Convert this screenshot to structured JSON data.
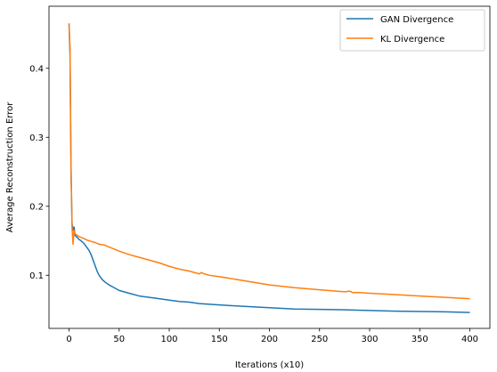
{
  "chart_data": {
    "type": "line",
    "xlabel": "Iterations (x10)",
    "ylabel": "Average Reconstruction Error",
    "xlim": [
      -20,
      420
    ],
    "ylim": [
      0.023,
      0.49
    ],
    "x_ticks": [
      0,
      50,
      100,
      150,
      200,
      250,
      300,
      350,
      400
    ],
    "y_ticks": [
      0.1,
      0.2,
      0.3,
      0.4
    ],
    "x_tick_labels": [
      "0",
      "50",
      "100",
      "150",
      "200",
      "250",
      "300",
      "350",
      "400"
    ],
    "y_tick_labels": [
      "0.1",
      "0.2",
      "0.3",
      "0.4"
    ],
    "grid": false,
    "legend_position": "top-right",
    "series": [
      {
        "name": "GAN Divergence",
        "color": "#1f77b4",
        "x": [
          0,
          1,
          2,
          3,
          4,
          5,
          6,
          8,
          10,
          12,
          15,
          18,
          20,
          22,
          25,
          28,
          30,
          33,
          36,
          40,
          45,
          50,
          60,
          70,
          80,
          90,
          100,
          110,
          120,
          130,
          140,
          150,
          175,
          200,
          225,
          250,
          275,
          300,
          325,
          350,
          375,
          400
        ],
        "y": [
          0.465,
          0.42,
          0.25,
          0.175,
          0.165,
          0.17,
          0.158,
          0.155,
          0.152,
          0.15,
          0.146,
          0.14,
          0.136,
          0.13,
          0.118,
          0.106,
          0.1,
          0.094,
          0.09,
          0.086,
          0.082,
          0.078,
          0.074,
          0.07,
          0.068,
          0.066,
          0.064,
          0.062,
          0.061,
          0.059,
          0.058,
          0.057,
          0.055,
          0.053,
          0.051,
          0.0505,
          0.05,
          0.049,
          0.048,
          0.0475,
          0.047,
          0.046
        ]
      },
      {
        "name": "KL Divergence",
        "color": "#ff7f0e",
        "x": [
          0,
          1,
          2,
          3,
          4,
          5,
          6,
          8,
          10,
          12,
          15,
          18,
          20,
          25,
          30,
          35,
          40,
          45,
          50,
          60,
          70,
          80,
          90,
          100,
          110,
          120,
          130,
          132,
          135,
          140,
          150,
          175,
          200,
          225,
          250,
          275,
          280,
          283,
          290,
          300,
          325,
          350,
          375,
          400
        ],
        "y": [
          0.465,
          0.43,
          0.26,
          0.17,
          0.145,
          0.165,
          0.16,
          0.158,
          0.156,
          0.155,
          0.153,
          0.151,
          0.15,
          0.148,
          0.145,
          0.144,
          0.141,
          0.138,
          0.135,
          0.13,
          0.126,
          0.122,
          0.118,
          0.113,
          0.109,
          0.106,
          0.102,
          0.104,
          0.102,
          0.1,
          0.098,
          0.092,
          0.086,
          0.082,
          0.079,
          0.076,
          0.077,
          0.075,
          0.075,
          0.074,
          0.072,
          0.07,
          0.068,
          0.066
        ]
      }
    ]
  }
}
